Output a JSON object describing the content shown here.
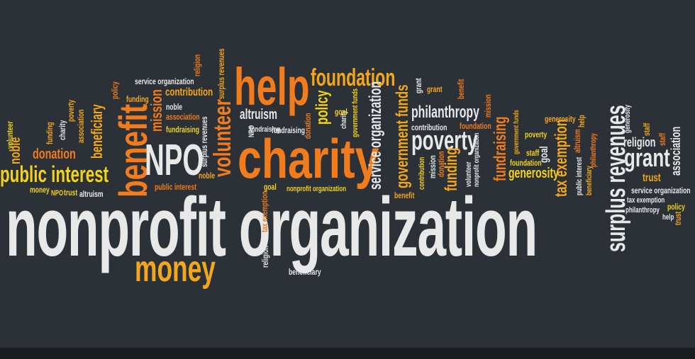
{
  "words": [
    {
      "text": "nonprofit organization",
      "color": "#e8e8e8"
    },
    {
      "text": "charity",
      "color": "#f07c1e"
    },
    {
      "text": "help",
      "color": "#f07c1e"
    },
    {
      "text": "foundation",
      "color": "#f3a81c"
    },
    {
      "text": "benefit",
      "color": "#f07c1e"
    },
    {
      "text": "NPO",
      "color": "#e8e8e8"
    },
    {
      "text": "volunteer",
      "color": "#f07c1e"
    },
    {
      "text": "money",
      "color": "#f3a81c"
    },
    {
      "text": "public interest",
      "color": "#f2d21c"
    },
    {
      "text": "donation",
      "color": "#f07c1e"
    },
    {
      "text": "noble",
      "color": "#f3a81c"
    },
    {
      "text": "beneficiary",
      "color": "#f3a81c"
    },
    {
      "text": "mission",
      "color": "#f07c1e"
    },
    {
      "text": "contribution",
      "color": "#f3a81c"
    },
    {
      "text": "altruism",
      "color": "#e8e8e8"
    },
    {
      "text": "policy",
      "color": "#f2d21c"
    },
    {
      "text": "service organization",
      "color": "#e8e8e8"
    },
    {
      "text": "government funds",
      "color": "#f3a81c"
    },
    {
      "text": "philanthropy",
      "color": "#e8e8e8"
    },
    {
      "text": "poverty",
      "color": "#e8e8e8"
    },
    {
      "text": "funding",
      "color": "#f3a81c"
    },
    {
      "text": "fundraising",
      "color": "#f07c1e"
    },
    {
      "text": "generosity",
      "color": "#f2d21c"
    },
    {
      "text": "tax exemption",
      "color": "#f3a81c"
    },
    {
      "text": "surplus revenues",
      "color": "#e8e8e8"
    },
    {
      "text": "grant",
      "color": "#e8e8e8"
    },
    {
      "text": "religion",
      "color": "#e8e8e8"
    },
    {
      "text": "trust",
      "color": "#f3a81c"
    },
    {
      "text": "association",
      "color": "#e8e8e8"
    },
    {
      "text": "service organization",
      "color": "#e8e8e8"
    },
    {
      "text": "tax exemption",
      "color": "#e8e8e8"
    },
    {
      "text": "philanthropy",
      "color": "#e8e8e8"
    },
    {
      "text": "help",
      "color": "#e8e8e8"
    },
    {
      "text": "policy",
      "color": "#f2d21c"
    },
    {
      "text": "trust",
      "color": "#f3a81c"
    },
    {
      "text": "beneficiary",
      "color": "#e8e8e8"
    },
    {
      "text": "religion",
      "color": "#e8e8e8"
    },
    {
      "text": "fundraising",
      "color": "#e8e8e8"
    },
    {
      "text": "goal",
      "color": "#f2d21c"
    },
    {
      "text": "nonprofit organization",
      "color": "#f2d21c"
    },
    {
      "text": "tax exemption",
      "color": "#f07c1e"
    },
    {
      "text": "public interest",
      "color": "#f07c1e"
    },
    {
      "text": "noble",
      "color": "#f3a81c"
    },
    {
      "text": "association",
      "color": "#f07c1e"
    },
    {
      "text": "fundraising",
      "color": "#f2d21c"
    },
    {
      "text": "noble",
      "color": "#e8e8e8"
    },
    {
      "text": "funding",
      "color": "#f3a81c"
    },
    {
      "text": "policy",
      "color": "#f07c1e"
    },
    {
      "text": "service organization",
      "color": "#e8e8e8"
    },
    {
      "text": "religion",
      "color": "#f07c1e"
    },
    {
      "text": "surplus revenues",
      "color": "#f3a81c"
    },
    {
      "text": "surplus revenues",
      "color": "#e8e8e8"
    },
    {
      "text": "money",
      "color": "#f2d21c"
    },
    {
      "text": "NPO",
      "color": "#f2d21c"
    },
    {
      "text": "trust",
      "color": "#f2d21c"
    },
    {
      "text": "altruism",
      "color": "#e8e8e8"
    },
    {
      "text": "volunteer",
      "color": "#f2d21c"
    },
    {
      "text": "funding",
      "color": "#f3a81c"
    },
    {
      "text": "charity",
      "color": "#e8e8e8"
    },
    {
      "text": "association",
      "color": "#f3a81c"
    },
    {
      "text": "poverty",
      "color": "#f3a81c"
    },
    {
      "text": "NPO",
      "color": "#e8e8e8"
    },
    {
      "text": "fundraising",
      "color": "#e8e8e8"
    },
    {
      "text": "donation",
      "color": "#f07c1e"
    },
    {
      "text": "charity",
      "color": "#e8e8e8"
    },
    {
      "text": "goal",
      "color": "#f2d21c"
    },
    {
      "text": "government funds",
      "color": "#f2d21c"
    },
    {
      "text": "grant",
      "color": "#e8e8e8"
    },
    {
      "text": "grant",
      "color": "#f3a81c"
    },
    {
      "text": "benefit",
      "color": "#f07c1e"
    },
    {
      "text": "contribution",
      "color": "#e8e8e8"
    },
    {
      "text": "foundation",
      "color": "#f07c1e"
    },
    {
      "text": "mission",
      "color": "#e8e8e8"
    },
    {
      "text": "donation",
      "color": "#f07c1e"
    },
    {
      "text": "volunteer",
      "color": "#e8e8e8"
    },
    {
      "text": "nonprofit organization",
      "color": "#e8e8e8"
    },
    {
      "text": "mission",
      "color": "#f07c1e"
    },
    {
      "text": "government funds",
      "color": "#f3a81c"
    },
    {
      "text": "staff",
      "color": "#f2d21c"
    },
    {
      "text": "foundation",
      "color": "#f2d21c"
    },
    {
      "text": "goal",
      "color": "#e8e8e8"
    },
    {
      "text": "poverty",
      "color": "#f2d21c"
    },
    {
      "text": "generosity",
      "color": "#f3a81c"
    },
    {
      "text": "help",
      "color": "#f3a81c"
    },
    {
      "text": "altruism",
      "color": "#f07c1e"
    },
    {
      "text": "public interest",
      "color": "#e8e8e8"
    },
    {
      "text": "beneficiary",
      "color": "#f3a81c"
    },
    {
      "text": "philanthropy",
      "color": "#f07c1e"
    },
    {
      "text": "generosity",
      "color": "#e8e8e8"
    },
    {
      "text": "staff",
      "color": "#f3a81c"
    },
    {
      "text": "staff",
      "color": "#f07c1e"
    },
    {
      "text": "benefit",
      "color": "#f3a81c"
    },
    {
      "text": "contribution",
      "color": "#f2d21c"
    }
  ]
}
